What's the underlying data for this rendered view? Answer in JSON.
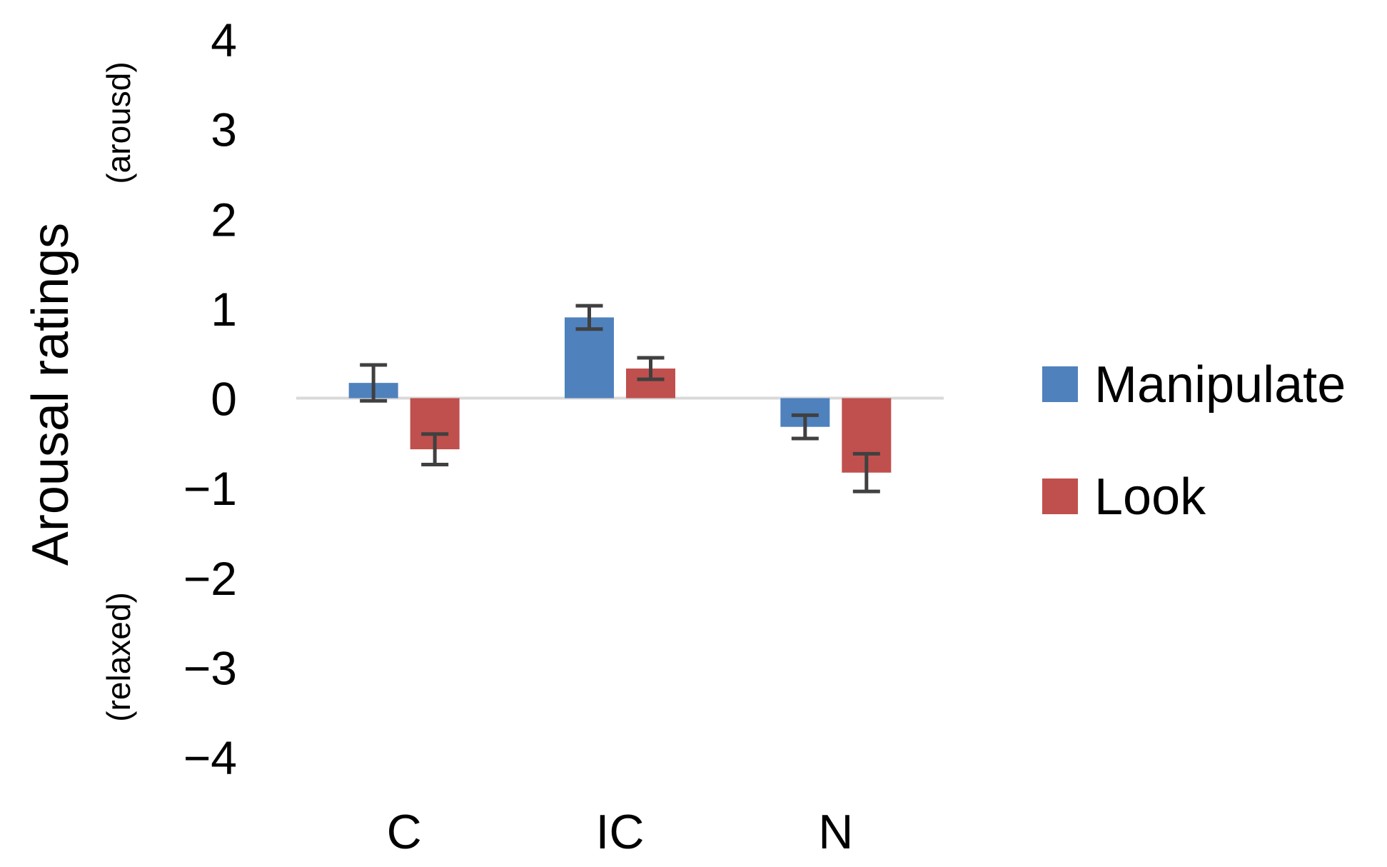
{
  "chart_data": {
    "type": "bar",
    "categories": [
      "C",
      "IC",
      "N"
    ],
    "series": [
      {
        "name": "Manipulate",
        "color": "#4F81BD",
        "values": [
          0.17,
          0.9,
          -0.32
        ],
        "error": [
          0.2,
          0.13,
          0.13
        ]
      },
      {
        "name": "Look",
        "color": "#C0504D",
        "values": [
          -0.57,
          0.33,
          -0.83
        ],
        "error": [
          0.17,
          0.12,
          0.21
        ]
      }
    ],
    "ylim": [
      -4,
      4
    ],
    "yticks": [
      4,
      3,
      2,
      1,
      0,
      -1,
      -2,
      -3,
      -4
    ],
    "ytick_labels": [
      "4",
      "3",
      "2",
      "1",
      "0",
      "−1",
      "−2",
      "−3",
      "−4"
    ],
    "ylabel": "Arousal ratings",
    "ylabel_top": "(arousd)",
    "ylabel_bottom": "(relaxed)",
    "xlabel": "",
    "grid": false,
    "legend_position": "right",
    "zero_line_color": "#D9D9D9",
    "error_bar_color": "#404040"
  }
}
